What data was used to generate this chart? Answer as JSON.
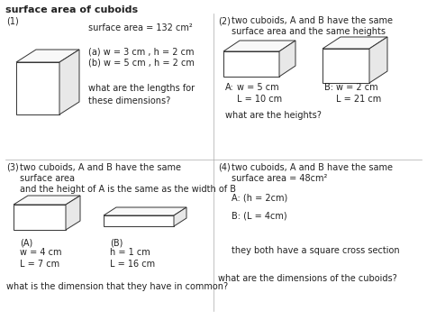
{
  "title": "surface area of cuboids",
  "bg": "#ffffff",
  "fg": "#222222",
  "s1_label": "(1)",
  "s1_t1": "surface area = 132 cm²",
  "s1_t2": "(a) w = 3 cm , h = 2 cm",
  "s1_t3": "(b) w = 5 cm , h = 2 cm",
  "s1_t4": "what are the lengths for\nthese dimensions?",
  "s2_label": "(2)",
  "s2_t1": "two cuboids, A and B have the same",
  "s2_t2": "surface area and the same heights",
  "s2_lA": "A:",
  "s2_tA": "w = 5 cm\nL = 10 cm",
  "s2_lB": "B:",
  "s2_tB": "w = 2 cm\nL = 21 cm",
  "s2_t3": "what are the heights?",
  "s3_label": "(3)",
  "s3_t1": "two cuboids, A and B have the same",
  "s3_t2": "surface area",
  "s3_t3": "and the height of A is the same as the width of B",
  "s3_lA": "(A)",
  "s3_tA": "w = 4 cm\nL = 7 cm",
  "s3_lB": "(B)",
  "s3_tB": "h = 1 cm\nL = 16 cm",
  "s3_t4": "what is the dimension that they have in common?",
  "s4_label": "(4)",
  "s4_t1": "two cuboids, A and B have the same",
  "s4_t2": "surface area = 48cm²",
  "s4_t3": "A: (h = 2cm)",
  "s4_t4": "B: (L = 4cm)",
  "s4_t5": "they both have a square cross section",
  "s4_t6": "what are the dimensions of the cuboids?",
  "lw": 0.7,
  "ec": "#333333",
  "fs": 7.0,
  "fs_title": 8.0
}
